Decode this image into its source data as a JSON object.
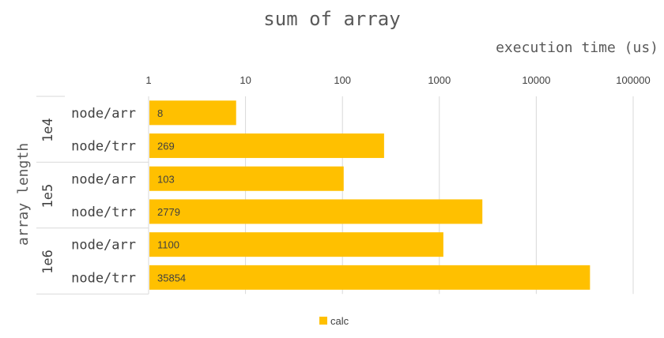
{
  "chart_data": {
    "type": "bar",
    "orientation": "horizontal",
    "title": "sum of array",
    "xlabel": "execution time (us)",
    "ylabel": "array length",
    "x_scale": "log",
    "xlim": [
      1,
      100000
    ],
    "x_ticks": [
      "1",
      "10",
      "100",
      "1000",
      "10000",
      "100000"
    ],
    "groups": [
      {
        "label": "1e4",
        "categories": [
          "node/arr",
          "node/trr"
        ],
        "values": [
          8,
          269
        ]
      },
      {
        "label": "1e5",
        "categories": [
          "node/arr",
          "node/trr"
        ],
        "values": [
          103,
          2779
        ]
      },
      {
        "label": "1e6",
        "categories": [
          "node/arr",
          "node/trr"
        ],
        "values": [
          1100,
          35854
        ]
      }
    ],
    "series": [
      {
        "name": "calc",
        "color": "#FFC000"
      }
    ],
    "legend_position": "bottom",
    "grid": true
  }
}
